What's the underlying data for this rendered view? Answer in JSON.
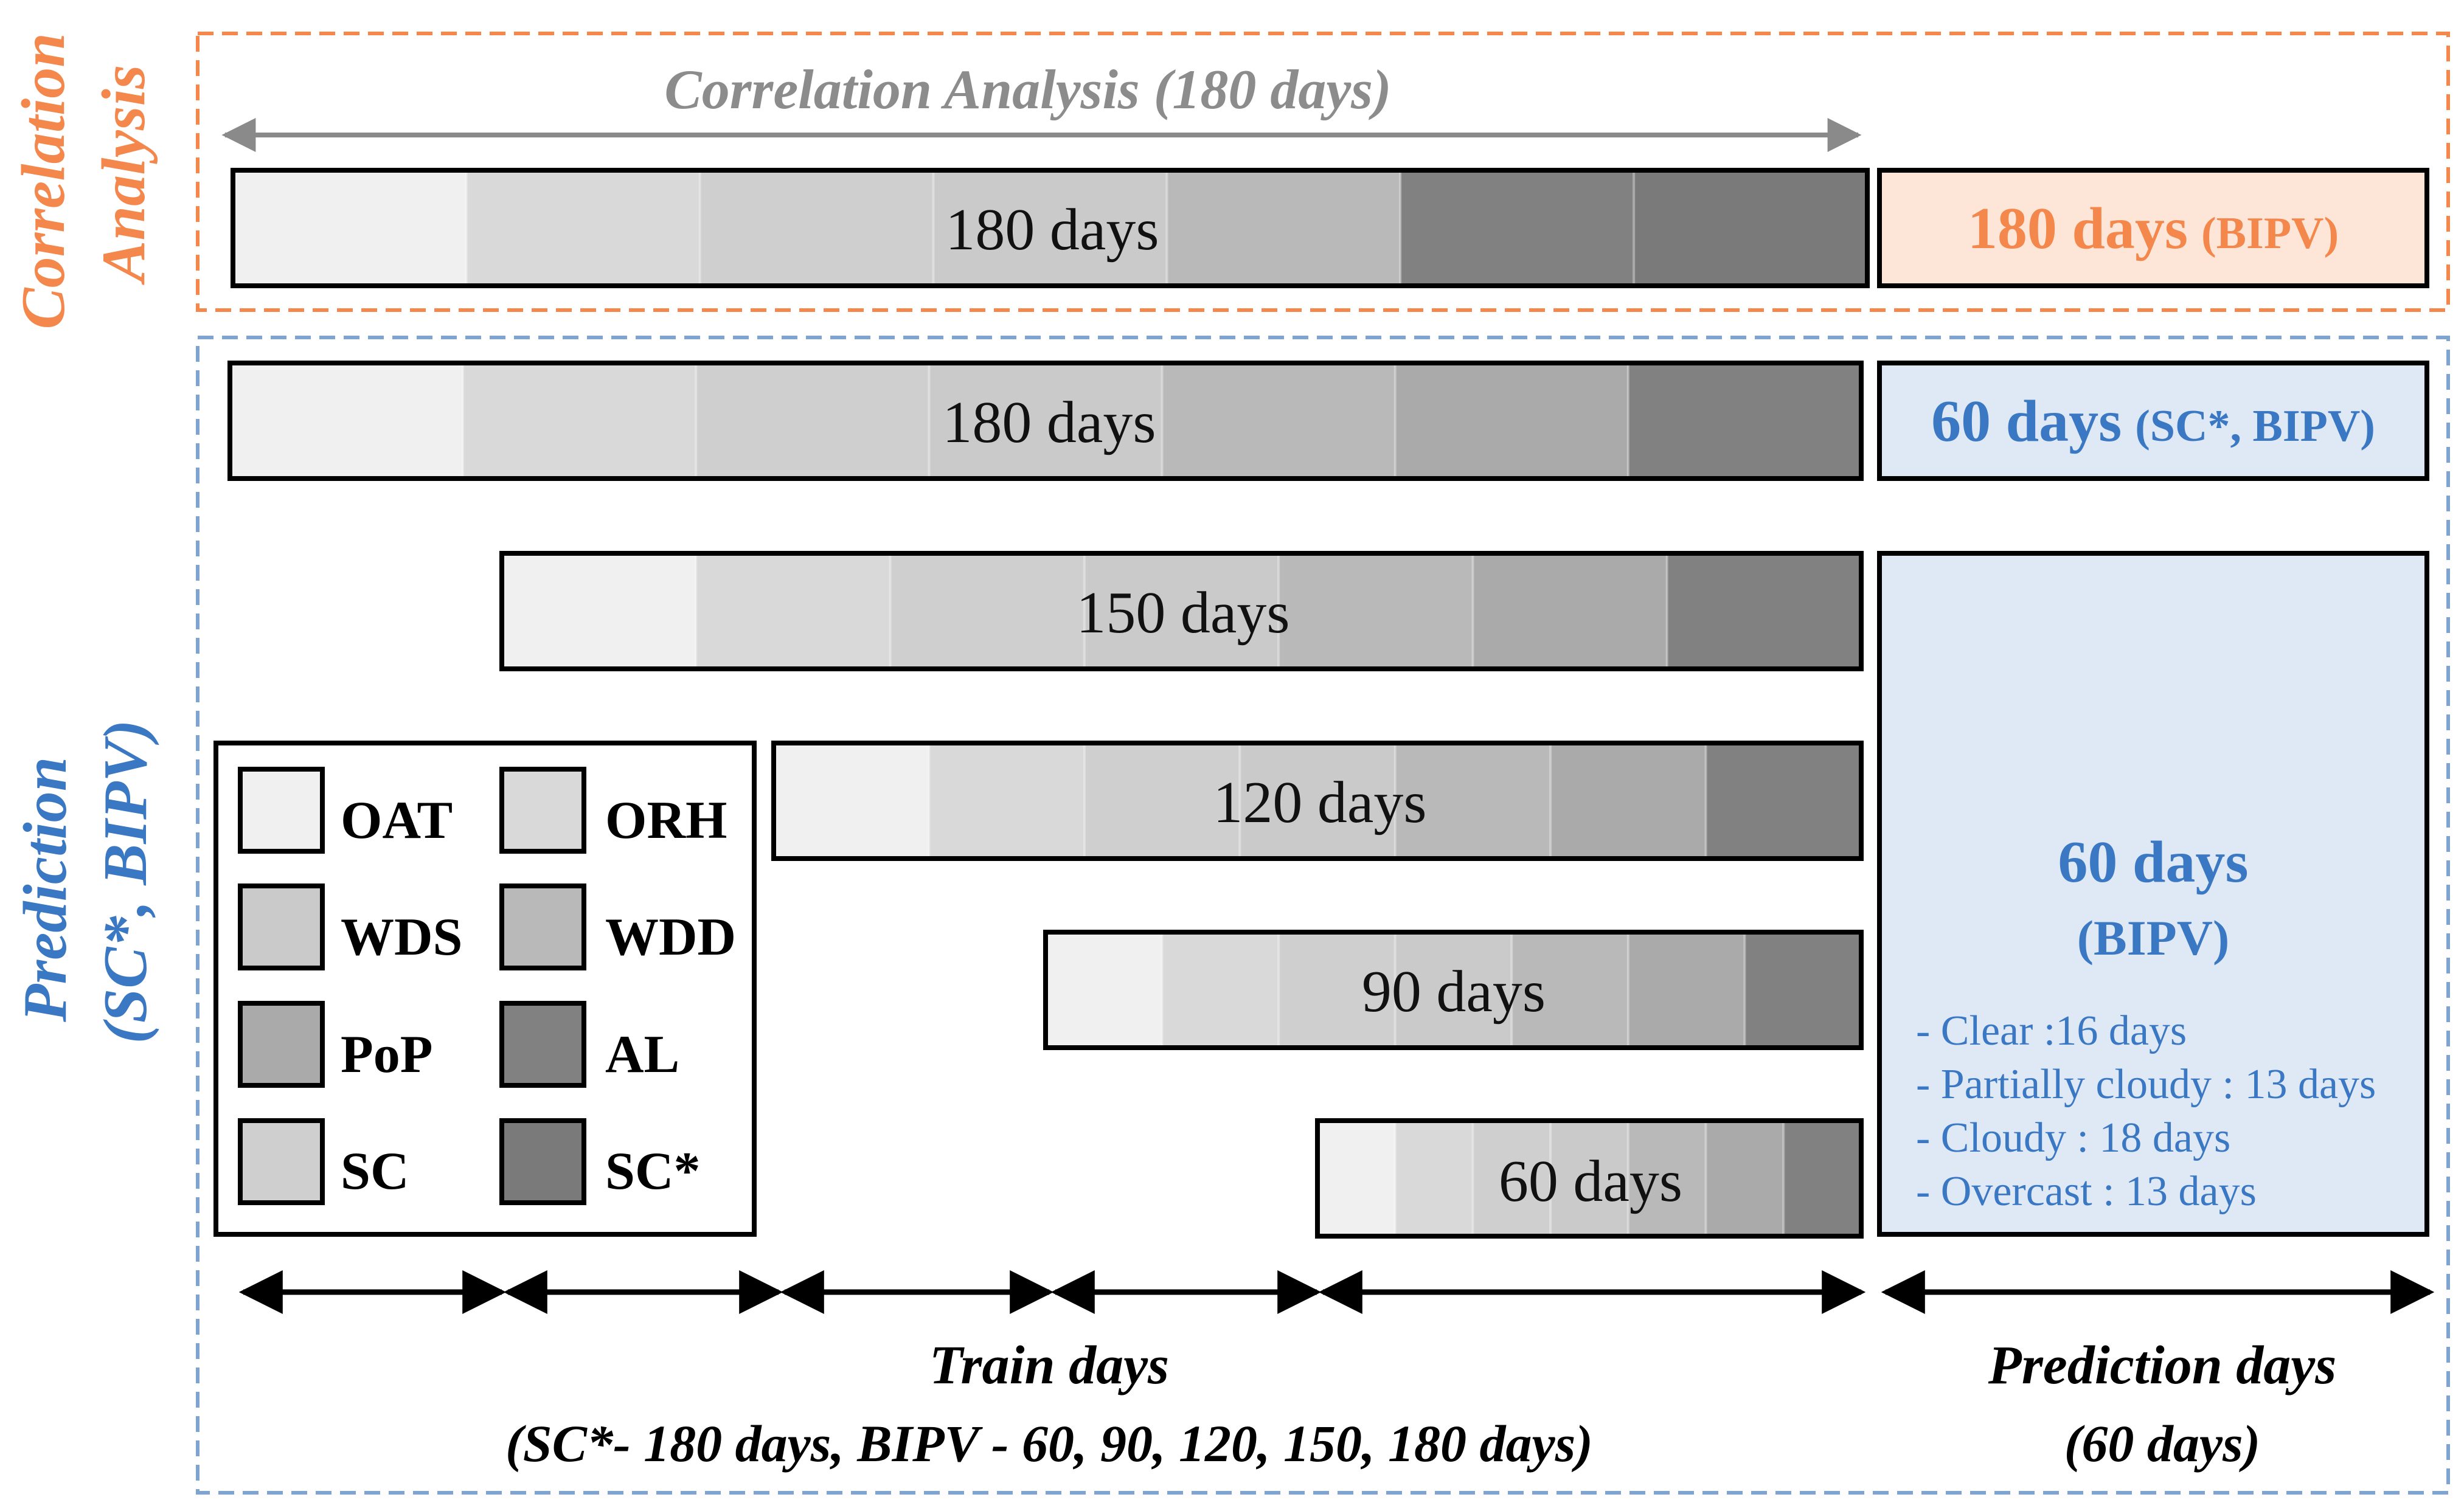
{
  "colors": {
    "orange": "#f4874b",
    "blue": "#3a78c4",
    "blue_dash": "#7fa4d0",
    "orange_fill": "#fde6d7",
    "blue_fill": "#dfe8f5",
    "gray_text": "#8c8c8c",
    "arrow_gray": "#8a8a8a",
    "variables": {
      "OAT": "#f0f0f0",
      "ORH": "#d9d9d9",
      "WDS": "#cacaca",
      "WDD": "#b9b9b9",
      "PoP": "#aaaaaa",
      "SC": "#cfcfcf",
      "AL": "#818181",
      "SC*": "#7a7a7a"
    }
  },
  "correlation": {
    "side_label_line1": "Correlation",
    "side_label_line2": "Analysis",
    "header": "Correlation Analysis (180 days)",
    "bar_label": "180 days",
    "result_main": "180 days",
    "result_sub": "(BIPV)"
  },
  "prediction": {
    "side_label_line1": "Prediction",
    "side_label_line2": "(SC*, BIPV)",
    "bars": [
      {
        "label": "180 days",
        "days": 180
      },
      {
        "label": "150 days",
        "days": 150
      },
      {
        "label": "120 days",
        "days": 120
      },
      {
        "label": "90 days",
        "days": 90
      },
      {
        "label": "60 days",
        "days": 60
      }
    ],
    "sc_box_main": "60 days",
    "sc_box_sub": "(SC*, BIPV)",
    "bipv_box_main": "60 days",
    "bipv_box_sub": "(BIPV)",
    "conditions": [
      "- Clear :16 days",
      "- Partially cloudy : 13 days",
      "- Cloudy : 18 days",
      "- Overcast : 13 days"
    ],
    "train_label": "Train days",
    "train_sub": "(SC*- 180 days,  BIPV - 60, 90, 120, 150, 180 days)",
    "pred_label": "Prediction days",
    "pred_sub": "(60 days)"
  },
  "legend": [
    {
      "label": "OAT"
    },
    {
      "label": "ORH"
    },
    {
      "label": "WDS"
    },
    {
      "label": "WDD"
    },
    {
      "label": "PoP"
    },
    {
      "label": "AL"
    },
    {
      "label": "SC"
    },
    {
      "label": "SC*"
    }
  ]
}
